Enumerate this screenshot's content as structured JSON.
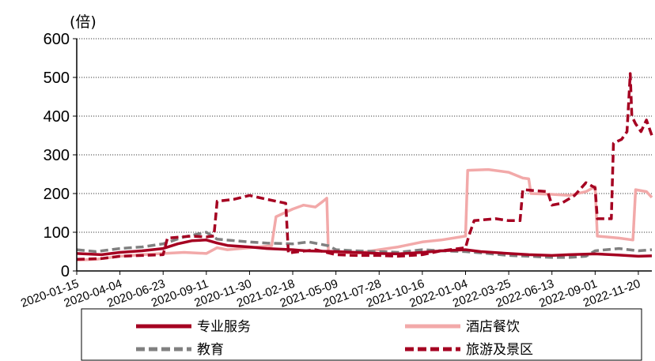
{
  "chart_data": {
    "type": "line",
    "title": "",
    "unit_label": "(倍)",
    "ylim": [
      0,
      600
    ],
    "y_ticks": [
      0,
      100,
      200,
      300,
      400,
      500,
      600
    ],
    "x_ticks": [
      "2020-01-15",
      "2020-04-04",
      "2020-06-23",
      "2020-09-11",
      "2020-11-30",
      "2021-02-18",
      "2021-05-09",
      "2021-07-28",
      "2021-10-16",
      "2022-01-04",
      "2022-03-25",
      "2022-06-13",
      "2022-09-01",
      "2022-11-20"
    ],
    "x_range": [
      "2020-01-15",
      "2022-12-15"
    ],
    "grid": "horizontal-dotted",
    "legend_position": "bottom",
    "series": [
      {
        "name": "专业服务",
        "color": "#A50021",
        "dash": "solid",
        "points": [
          [
            "2020-01-15",
            45
          ],
          [
            "2020-03-01",
            42
          ],
          [
            "2020-04-04",
            48
          ],
          [
            "2020-05-15",
            52
          ],
          [
            "2020-06-23",
            58
          ],
          [
            "2020-07-20",
            70
          ],
          [
            "2020-08-15",
            78
          ],
          [
            "2020-09-11",
            80
          ],
          [
            "2020-10-01",
            72
          ],
          [
            "2020-10-20",
            66
          ],
          [
            "2020-11-30",
            62
          ],
          [
            "2021-01-01",
            58
          ],
          [
            "2021-02-18",
            55
          ],
          [
            "2021-03-15",
            52
          ],
          [
            "2021-05-09",
            50
          ],
          [
            "2021-06-15",
            48
          ],
          [
            "2021-07-28",
            45
          ],
          [
            "2021-09-01",
            44
          ],
          [
            "2021-10-16",
            48
          ],
          [
            "2021-11-20",
            52
          ],
          [
            "2022-01-04",
            55
          ],
          [
            "2022-02-01",
            50
          ],
          [
            "2022-03-25",
            45
          ],
          [
            "2022-05-01",
            42
          ],
          [
            "2022-06-13",
            40
          ],
          [
            "2022-07-15",
            42
          ],
          [
            "2022-09-01",
            44
          ],
          [
            "2022-10-15",
            41
          ],
          [
            "2022-11-20",
            38
          ],
          [
            "2022-12-15",
            39
          ]
        ]
      },
      {
        "name": "酒店餐饮",
        "color": "#F2A9A9",
        "dash": "solid",
        "points": [
          [
            "2020-01-15",
            28
          ],
          [
            "2020-02-20",
            30
          ],
          [
            "2020-04-04",
            38
          ],
          [
            "2020-05-15",
            42
          ],
          [
            "2020-06-23",
            45
          ],
          [
            "2020-08-01",
            48
          ],
          [
            "2020-09-11",
            45
          ],
          [
            "2020-10-01",
            60
          ],
          [
            "2020-10-20",
            55
          ],
          [
            "2020-11-30",
            60
          ],
          [
            "2021-01-10",
            65
          ],
          [
            "2021-01-18",
            140
          ],
          [
            "2021-02-18",
            160
          ],
          [
            "2021-03-10",
            170
          ],
          [
            "2021-04-01",
            165
          ],
          [
            "2021-04-15",
            180
          ],
          [
            "2021-04-22",
            188
          ],
          [
            "2021-04-25",
            50
          ],
          [
            "2021-05-09",
            48
          ],
          [
            "2021-06-15",
            45
          ],
          [
            "2021-07-28",
            55
          ],
          [
            "2021-09-01",
            62
          ],
          [
            "2021-10-16",
            75
          ],
          [
            "2021-11-20",
            80
          ],
          [
            "2022-01-04",
            90
          ],
          [
            "2022-01-08",
            260
          ],
          [
            "2022-02-15",
            262
          ],
          [
            "2022-03-25",
            255
          ],
          [
            "2022-04-20",
            240
          ],
          [
            "2022-05-01",
            238
          ],
          [
            "2022-05-05",
            200
          ],
          [
            "2022-06-13",
            198
          ],
          [
            "2022-07-15",
            195
          ],
          [
            "2022-08-15",
            205
          ],
          [
            "2022-09-01",
            218
          ],
          [
            "2022-09-05",
            90
          ],
          [
            "2022-10-15",
            85
          ],
          [
            "2022-11-10",
            80
          ],
          [
            "2022-11-15",
            210
          ],
          [
            "2022-12-05",
            205
          ],
          [
            "2022-12-15",
            190
          ]
        ]
      },
      {
        "name": "教育",
        "color": "#808080",
        "dash": "dashed",
        "points": [
          [
            "2020-01-15",
            55
          ],
          [
            "2020-02-20",
            50
          ],
          [
            "2020-04-04",
            58
          ],
          [
            "2020-05-15",
            62
          ],
          [
            "2020-06-23",
            70
          ],
          [
            "2020-08-01",
            88
          ],
          [
            "2020-09-11",
            100
          ],
          [
            "2020-10-01",
            82
          ],
          [
            "2020-11-30",
            75
          ],
          [
            "2021-01-01",
            72
          ],
          [
            "2021-02-18",
            70
          ],
          [
            "2021-03-20",
            75
          ],
          [
            "2021-04-25",
            65
          ],
          [
            "2021-05-09",
            55
          ],
          [
            "2021-06-15",
            52
          ],
          [
            "2021-07-28",
            50
          ],
          [
            "2021-09-01",
            48
          ],
          [
            "2021-10-16",
            55
          ],
          [
            "2021-11-20",
            52
          ],
          [
            "2022-01-04",
            50
          ],
          [
            "2022-02-15",
            45
          ],
          [
            "2022-03-25",
            40
          ],
          [
            "2022-05-01",
            38
          ],
          [
            "2022-06-13",
            35
          ],
          [
            "2022-07-15",
            35
          ],
          [
            "2022-08-15",
            38
          ],
          [
            "2022-09-01",
            52
          ],
          [
            "2022-10-15",
            58
          ],
          [
            "2022-11-20",
            52
          ],
          [
            "2022-12-15",
            55
          ]
        ]
      },
      {
        "name": "旅游及景区",
        "color": "#A50021",
        "dash": "dashed",
        "points": [
          [
            "2020-01-15",
            30
          ],
          [
            "2020-03-01",
            32
          ],
          [
            "2020-04-04",
            38
          ],
          [
            "2020-05-15",
            40
          ],
          [
            "2020-06-23",
            42
          ],
          [
            "2020-07-01",
            85
          ],
          [
            "2020-08-15",
            90
          ],
          [
            "2020-09-11",
            88
          ],
          [
            "2020-09-25",
            90
          ],
          [
            "2020-10-01",
            180
          ],
          [
            "2020-11-01",
            185
          ],
          [
            "2020-11-30",
            195
          ],
          [
            "2021-01-01",
            185
          ],
          [
            "2021-02-05",
            175
          ],
          [
            "2021-02-10",
            45
          ],
          [
            "2021-02-18",
            48
          ],
          [
            "2021-04-01",
            55
          ],
          [
            "2021-05-09",
            42
          ],
          [
            "2021-06-15",
            40
          ],
          [
            "2021-07-28",
            40
          ],
          [
            "2021-09-01",
            38
          ],
          [
            "2021-10-16",
            42
          ],
          [
            "2021-11-20",
            52
          ],
          [
            "2022-01-04",
            60
          ],
          [
            "2022-01-10",
            90
          ],
          [
            "2022-01-20",
            130
          ],
          [
            "2022-03-01",
            135
          ],
          [
            "2022-03-25",
            130
          ],
          [
            "2022-04-15",
            130
          ],
          [
            "2022-04-20",
            210
          ],
          [
            "2022-06-05",
            205
          ],
          [
            "2022-06-13",
            170
          ],
          [
            "2022-07-01",
            175
          ],
          [
            "2022-07-25",
            195
          ],
          [
            "2022-08-15",
            228
          ],
          [
            "2022-09-01",
            215
          ],
          [
            "2022-09-05",
            135
          ],
          [
            "2022-10-01",
            135
          ],
          [
            "2022-10-05",
            330
          ],
          [
            "2022-10-20",
            340
          ],
          [
            "2022-10-30",
            360
          ],
          [
            "2022-11-01",
            410
          ],
          [
            "2022-11-05",
            510
          ],
          [
            "2022-11-08",
            400
          ],
          [
            "2022-11-15",
            380
          ],
          [
            "2022-11-25",
            360
          ],
          [
            "2022-12-05",
            390
          ],
          [
            "2022-12-15",
            350
          ]
        ]
      }
    ]
  }
}
